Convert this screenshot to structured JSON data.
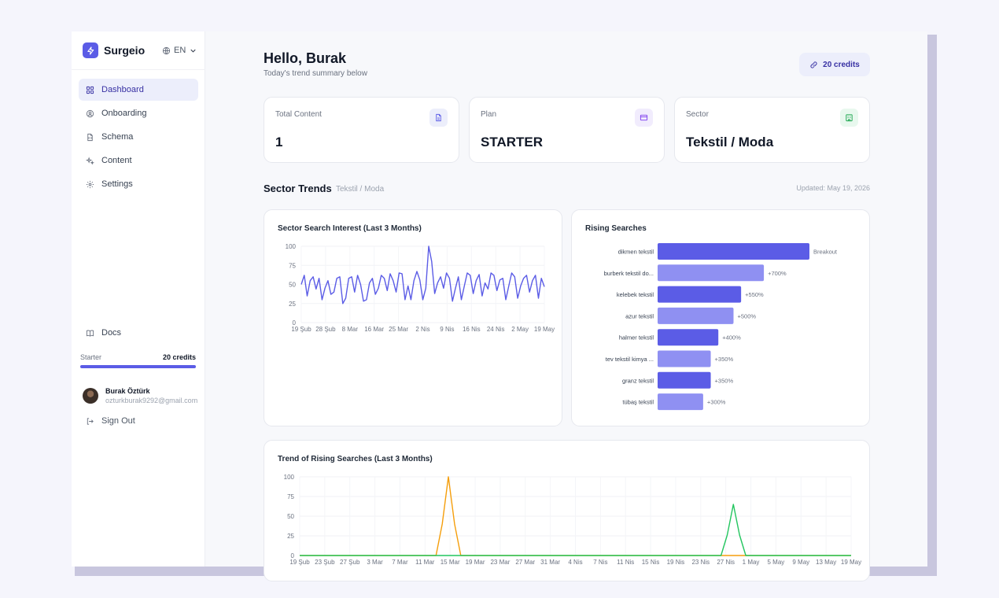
{
  "app": {
    "brand": "Surgeio",
    "language": "EN"
  },
  "sidebar": {
    "items": [
      {
        "label": "Dashboard",
        "icon": "grid-icon",
        "active": true
      },
      {
        "label": "Onboarding",
        "icon": "user-circle-icon"
      },
      {
        "label": "Schema",
        "icon": "file-code-icon"
      },
      {
        "label": "Content",
        "icon": "sparkles-icon"
      },
      {
        "label": "Settings",
        "icon": "gear-icon"
      }
    ],
    "docs": "Docs",
    "plan": "Starter",
    "plan_credits": "20 credits",
    "credits_used_fraction": 1.0,
    "user": {
      "name": "Burak Öztürk",
      "email": "ozturkburak9292@gmail.com"
    },
    "sign_out": "Sign Out"
  },
  "header": {
    "greeting": "Hello, Burak",
    "subtitle": "Today's trend summary below",
    "credits": "20 credits"
  },
  "stats": [
    {
      "label": "Total Content",
      "value": "1",
      "icon": "document-icon",
      "color": "#5b5ce6",
      "bg": "#eceefb"
    },
    {
      "label": "Plan",
      "value": "STARTER",
      "icon": "credit-card-icon",
      "color": "#7c3aed",
      "bg": "#f1ecfd"
    },
    {
      "label": "Sector",
      "value": "Tekstil / Moda",
      "icon": "building-icon",
      "color": "#16a34a",
      "bg": "#e8f8ee"
    }
  ],
  "trends": {
    "title": "Sector Trends",
    "sector": "Tekstil / Moda",
    "updated": "Updated: May 19, 2026"
  },
  "chart_data": [
    {
      "type": "line",
      "title": "Sector Search Interest (Last 3 Months)",
      "ylim": [
        0,
        100
      ],
      "yticks": [
        0,
        25,
        50,
        75,
        100
      ],
      "xticks": [
        "19 Şub",
        "28 Şub",
        "8 Mar",
        "16 Mar",
        "25 Mar",
        "2 Nis",
        "9 Nis",
        "16 Nis",
        "24 Nis",
        "2 May",
        "19 May"
      ],
      "grid": true,
      "color": "#5b5ce6",
      "series": [
        {
          "values": [
            50,
            62,
            35,
            55,
            60,
            44,
            58,
            30,
            45,
            55,
            37,
            40,
            58,
            60,
            25,
            32,
            58,
            60,
            40,
            62,
            50,
            28,
            30,
            52,
            58,
            37,
            45,
            62,
            58,
            42,
            64,
            55,
            40,
            65,
            64,
            30,
            48,
            30,
            55,
            67,
            56,
            30,
            45,
            100,
            80,
            38,
            52,
            60,
            45,
            65,
            58,
            28,
            45,
            60,
            30,
            48,
            65,
            62,
            38,
            55,
            63,
            35,
            52,
            44,
            65,
            62,
            42,
            56,
            58,
            30,
            48,
            65,
            60,
            32,
            48,
            58,
            62,
            40,
            55,
            62,
            32,
            58,
            47
          ]
        }
      ]
    },
    {
      "type": "bar",
      "orientation": "horizontal",
      "title": "Rising Searches",
      "categories": [
        "dikmen tekstil",
        "burberk tekstil do...",
        "kelebek tekstil",
        "azur tekstil",
        "halmer tekstil",
        "tev tekstil kimya ...",
        "granz tekstil",
        "tübaş tekstil"
      ],
      "values": [
        1000,
        700,
        550,
        500,
        400,
        350,
        350,
        300
      ],
      "labels": [
        "Breakout",
        "+700%",
        "+550%",
        "+500%",
        "+400%",
        "+350%",
        "+350%",
        "+300%"
      ],
      "colors": [
        "#5b5ce6",
        "#8f90f2",
        "#5b5ce6",
        "#8f90f2",
        "#5b5ce6",
        "#8f90f2",
        "#5b5ce6",
        "#8f90f2"
      ]
    },
    {
      "type": "line",
      "title": "Trend of Rising Searches (Last 3 Months)",
      "ylim": [
        0,
        100
      ],
      "yticks": [
        0,
        25,
        50,
        75,
        100
      ],
      "xticks": [
        "19 Şub",
        "23 Şub",
        "27 Şub",
        "3 Mar",
        "7 Mar",
        "11 Mar",
        "15 Mar",
        "19 Mar",
        "23 Mar",
        "27 Mar",
        "31 Mar",
        "4 Nis",
        "7 Nis",
        "11 Nis",
        "15 Nis",
        "19 Nis",
        "23 Nis",
        "27 Nis",
        "1 May",
        "5 May",
        "9 May",
        "13 May",
        "19 May"
      ],
      "grid": true,
      "series": [
        {
          "color": "#f59e0b",
          "peak_index": 24,
          "peak": 100,
          "points": 90
        },
        {
          "color": "#22c55e",
          "peak_index": 70,
          "peak": 65,
          "points": 90
        }
      ]
    }
  ]
}
